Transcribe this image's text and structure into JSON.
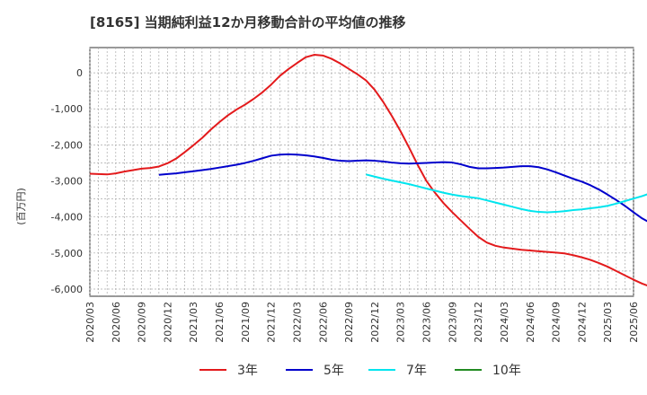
{
  "chart_data": {
    "type": "line",
    "title": "[8165]  当期純利益12か月移動合計の平均値の推移",
    "xlabel": "",
    "ylabel": "(百万円)",
    "ylim": [
      -6200,
      700
    ],
    "yticks": [
      0,
      -1000,
      -2000,
      -3000,
      -4000,
      -5000,
      -6000
    ],
    "ytick_labels": [
      "0",
      "-1,000",
      "-2,000",
      "-3,000",
      "-4,000",
      "-5,000",
      "-6,000"
    ],
    "xticks": [
      "2020/03",
      "2020/06",
      "2020/09",
      "2020/12",
      "2021/03",
      "2021/06",
      "2021/09",
      "2021/12",
      "2022/03",
      "2022/06",
      "2022/09",
      "2022/12",
      "2023/03",
      "2023/06",
      "2023/09",
      "2023/12",
      "2024/03",
      "2024/06",
      "2024/09",
      "2024/12",
      "2025/03",
      "2025/06"
    ],
    "grid": true,
    "legend_position": "bottom",
    "series": [
      {
        "name": "3年",
        "color": "#e31a1c",
        "start": "2020/03",
        "values": [
          -2800,
          -2810,
          -2820,
          -2790,
          -2740,
          -2700,
          -2660,
          -2640,
          -2600,
          -2510,
          -2380,
          -2200,
          -2010,
          -1810,
          -1580,
          -1370,
          -1180,
          -1020,
          -880,
          -720,
          -540,
          -330,
          -90,
          100,
          270,
          430,
          500,
          480,
          390,
          260,
          110,
          -40,
          -210,
          -470,
          -810,
          -1200,
          -1620,
          -2080,
          -2560,
          -3000,
          -3330,
          -3620,
          -3870,
          -4100,
          -4330,
          -4550,
          -4710,
          -4800,
          -4850,
          -4880,
          -4910,
          -4930,
          -4950,
          -4970,
          -4990,
          -5010,
          -5060,
          -5120,
          -5190,
          -5280,
          -5380,
          -5500,
          -5620,
          -5740,
          -5850,
          -5940,
          -6010,
          -6050
        ]
      },
      {
        "name": "5年",
        "color": "#0000cc",
        "start": "2020/11",
        "values": [
          -2830,
          -2810,
          -2790,
          -2760,
          -2730,
          -2700,
          -2670,
          -2630,
          -2590,
          -2550,
          -2500,
          -2440,
          -2370,
          -2300,
          -2270,
          -2260,
          -2270,
          -2290,
          -2320,
          -2360,
          -2410,
          -2440,
          -2450,
          -2440,
          -2430,
          -2440,
          -2460,
          -2490,
          -2510,
          -2520,
          -2510,
          -2500,
          -2490,
          -2480,
          -2490,
          -2540,
          -2610,
          -2650,
          -2650,
          -2640,
          -2630,
          -2610,
          -2590,
          -2590,
          -2620,
          -2680,
          -2760,
          -2850,
          -2940,
          -3020,
          -3120,
          -3240,
          -3380,
          -3530,
          -3690,
          -3870,
          -4040,
          -4170,
          -4270,
          -4330
        ]
      },
      {
        "name": "7年",
        "color": "#00e5ee",
        "start": "2022/11",
        "values": [
          -2820,
          -2880,
          -2940,
          -2990,
          -3040,
          -3090,
          -3150,
          -3210,
          -3270,
          -3330,
          -3380,
          -3420,
          -3450,
          -3480,
          -3540,
          -3600,
          -3660,
          -3720,
          -3780,
          -3830,
          -3860,
          -3870,
          -3860,
          -3840,
          -3810,
          -3790,
          -3760,
          -3730,
          -3690,
          -3630,
          -3560,
          -3490,
          -3420,
          -3340,
          -3250
        ]
      },
      {
        "name": "10年",
        "color": "#228b22",
        "start": "2025/03",
        "values": []
      }
    ]
  }
}
